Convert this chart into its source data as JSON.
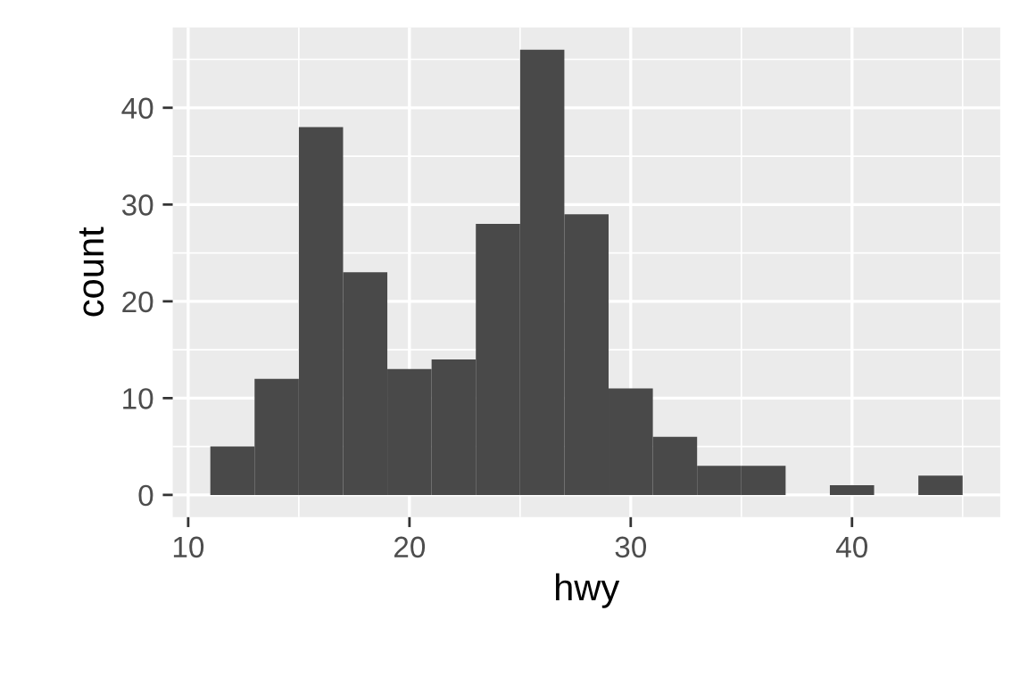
{
  "chart_data": {
    "type": "histogram",
    "xlabel": "hwy",
    "ylabel": "count",
    "bins": [
      11,
      13,
      15,
      17,
      19,
      21,
      23,
      25,
      27,
      29,
      31,
      33,
      35,
      37,
      39,
      41,
      43,
      45
    ],
    "values": [
      5,
      12,
      38,
      23,
      13,
      14,
      28,
      46,
      29,
      11,
      6,
      3,
      3,
      0,
      1,
      0,
      2
    ],
    "color": "#494949",
    "xlim": [
      9.3,
      46.7
    ],
    "xticks": [
      10,
      20,
      30,
      40
    ],
    "ylim": [
      -2.3,
      48.3
    ],
    "yticks": [
      0,
      10,
      20,
      30,
      40
    ],
    "grid": true
  }
}
